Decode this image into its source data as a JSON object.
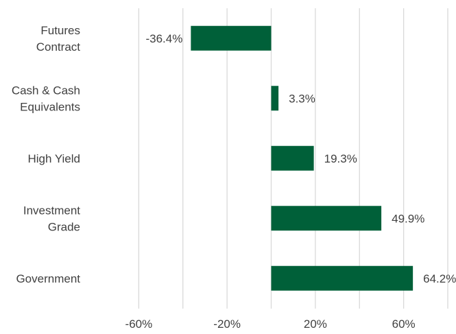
{
  "chart_data": {
    "type": "bar",
    "orientation": "horizontal",
    "categories": [
      [
        "Futures",
        "Contract"
      ],
      [
        "Cash & Cash",
        "Equivalents"
      ],
      [
        "High Yield"
      ],
      [
        "Investment",
        "Grade"
      ],
      [
        "Government"
      ]
    ],
    "values": [
      -36.4,
      3.3,
      19.3,
      49.9,
      64.2
    ],
    "data_labels": [
      "-36.4%",
      "3.3%",
      "19.3%",
      "49.9%",
      "64.2%"
    ],
    "xlim": [
      -80,
      80
    ],
    "gridlines": [
      -60,
      -40,
      -20,
      0,
      20,
      40,
      60,
      80
    ],
    "tick_values": [
      -60,
      -20,
      20,
      60
    ],
    "tick_labels": [
      "-60%",
      "-20%",
      "20%",
      "60%"
    ],
    "bar_color": "#006039",
    "grid_color": "#d9d9d9",
    "text_color": "#404040",
    "grid": true,
    "legend": "none"
  }
}
